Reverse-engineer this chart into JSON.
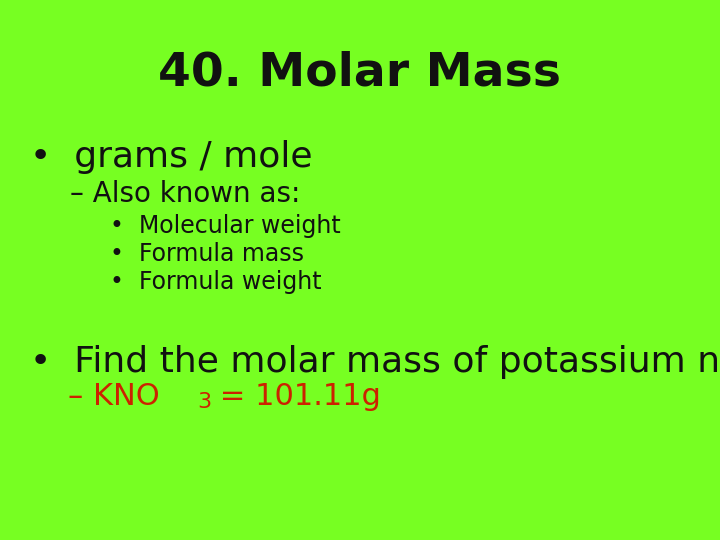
{
  "background_color": "#77ff22",
  "title": "40. Molar Mass",
  "title_fontsize": 34,
  "title_color": "#111111",
  "bullet1_text": "•  grams / mole",
  "bullet1_fontsize": 26,
  "bullet1_color": "#111111",
  "sub1_text": "– Also known as:",
  "sub1_fontsize": 20,
  "sub1_color": "#111111",
  "subsub1_text": "•  Molecular weight",
  "subsub2_text": "•  Formula mass",
  "subsub3_text": "•  Formula weight",
  "subsub_fontsize": 17,
  "subsub_color": "#111111",
  "bullet2_text": "•  Find the molar mass of potassium nitrate?",
  "bullet2_fontsize": 26,
  "bullet2_color": "#111111",
  "answer_text1": "– KNO",
  "answer_sub": "3",
  "answer_text2": " = 101.11g",
  "answer_fontsize": 22,
  "answer_color": "#cc2200"
}
